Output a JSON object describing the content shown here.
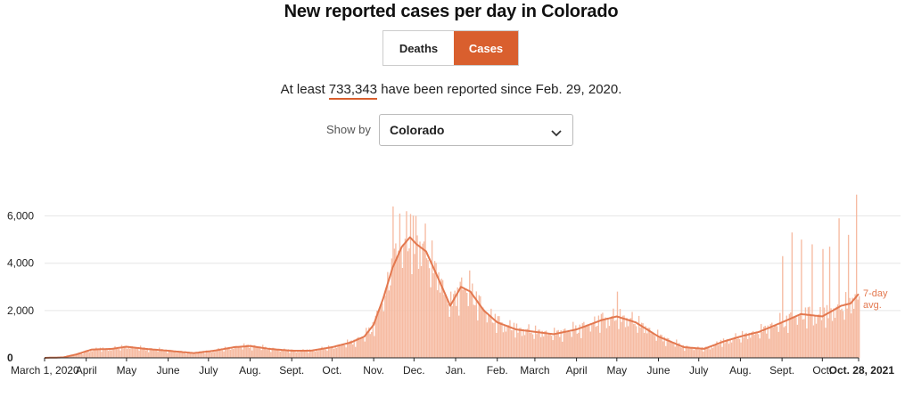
{
  "title": "New reported cases per day in Colorado",
  "toggle": {
    "deaths_label": "Deaths",
    "cases_label": "Cases",
    "active": "Cases"
  },
  "summary": {
    "prefix": "At least",
    "number": "733,343",
    "suffix": "have been reported since Feb. 29, 2020."
  },
  "show_by": {
    "label": "Show by",
    "value": "Colorado"
  },
  "colors": {
    "accent": "#d95f2e",
    "bar": "#f6bba2",
    "line": "#e3784f",
    "grid": "#e6e6e6"
  },
  "chart_data": {
    "type": "bar",
    "title": "New reported cases per day in Colorado",
    "x_range": [
      "2020-03-01",
      "2021-10-28"
    ],
    "ylim": [
      0,
      7000
    ],
    "y_ticks": [
      0,
      2000,
      4000,
      6000
    ],
    "y_tick_labels": [
      "0",
      "2,000",
      "4,000",
      "6,000"
    ],
    "x_tick_labels": [
      "March 1, 2020",
      "April",
      "May",
      "June",
      "July",
      "Aug.",
      "Sept.",
      "Oct.",
      "Nov.",
      "Dec.",
      "Jan.",
      "Feb.",
      "March",
      "April",
      "May",
      "June",
      "July",
      "Aug.",
      "Sept.",
      "Oct.",
      "Oct. 28, 2021"
    ],
    "x_tick_dates": [
      "2020-03-01",
      "2020-04-01",
      "2020-05-01",
      "2020-06-01",
      "2020-07-01",
      "2020-08-01",
      "2020-09-01",
      "2020-10-01",
      "2020-11-01",
      "2020-12-01",
      "2021-01-01",
      "2021-02-01",
      "2021-03-01",
      "2021-04-01",
      "2021-05-01",
      "2021-06-01",
      "2021-07-01",
      "2021-08-01",
      "2021-09-01",
      "2021-10-01",
      "2021-10-28"
    ],
    "series": [
      {
        "name": "7-day avg.",
        "kind": "line",
        "points": [
          [
            "2020-03-01",
            0
          ],
          [
            "2020-03-15",
            20
          ],
          [
            "2020-03-25",
            150
          ],
          [
            "2020-04-05",
            350
          ],
          [
            "2020-04-20",
            380
          ],
          [
            "2020-05-01",
            470
          ],
          [
            "2020-05-15",
            380
          ],
          [
            "2020-06-01",
            300
          ],
          [
            "2020-06-20",
            200
          ],
          [
            "2020-07-05",
            300
          ],
          [
            "2020-07-20",
            450
          ],
          [
            "2020-08-01",
            500
          ],
          [
            "2020-08-15",
            380
          ],
          [
            "2020-09-01",
            300
          ],
          [
            "2020-09-15",
            300
          ],
          [
            "2020-10-01",
            450
          ],
          [
            "2020-10-15",
            650
          ],
          [
            "2020-10-25",
            900
          ],
          [
            "2020-11-01",
            1400
          ],
          [
            "2020-11-08",
            2500
          ],
          [
            "2020-11-15",
            3800
          ],
          [
            "2020-11-22",
            4700
          ],
          [
            "2020-11-28",
            5100
          ],
          [
            "2020-12-03",
            4800
          ],
          [
            "2020-12-10",
            4500
          ],
          [
            "2020-12-18",
            3500
          ],
          [
            "2020-12-28",
            2200
          ],
          [
            "2021-01-05",
            3000
          ],
          [
            "2021-01-12",
            2800
          ],
          [
            "2021-01-22",
            2000
          ],
          [
            "2021-02-01",
            1500
          ],
          [
            "2021-02-15",
            1200
          ],
          [
            "2021-03-01",
            1100
          ],
          [
            "2021-03-15",
            1000
          ],
          [
            "2021-04-01",
            1200
          ],
          [
            "2021-04-20",
            1600
          ],
          [
            "2021-05-01",
            1750
          ],
          [
            "2021-05-15",
            1500
          ],
          [
            "2021-06-01",
            900
          ],
          [
            "2021-06-20",
            450
          ],
          [
            "2021-07-05",
            380
          ],
          [
            "2021-07-20",
            700
          ],
          [
            "2021-08-01",
            900
          ],
          [
            "2021-08-15",
            1100
          ],
          [
            "2021-09-01",
            1500
          ],
          [
            "2021-09-15",
            1850
          ],
          [
            "2021-10-01",
            1750
          ],
          [
            "2021-10-15",
            2200
          ],
          [
            "2021-10-22",
            2300
          ],
          [
            "2021-10-28",
            2700
          ]
        ]
      }
    ],
    "daily_envelope_note": "Daily bars roughly follow the 7-day avg. with weekly spikes",
    "notable_daily_peaks": [
      [
        "2020-11-15",
        6400
      ],
      [
        "2020-11-20",
        6100
      ],
      [
        "2020-11-25",
        6200
      ],
      [
        "2020-12-02",
        6000
      ],
      [
        "2021-05-01",
        2800
      ],
      [
        "2021-09-01",
        4300
      ],
      [
        "2021-09-08",
        5300
      ],
      [
        "2021-09-15",
        5000
      ],
      [
        "2021-09-23",
        4800
      ],
      [
        "2021-10-01",
        4600
      ],
      [
        "2021-10-06",
        4700
      ],
      [
        "2021-10-13",
        5900
      ],
      [
        "2021-10-20",
        5200
      ],
      [
        "2021-10-26",
        6900
      ]
    ],
    "annotations": [
      "7-day",
      "avg."
    ]
  }
}
